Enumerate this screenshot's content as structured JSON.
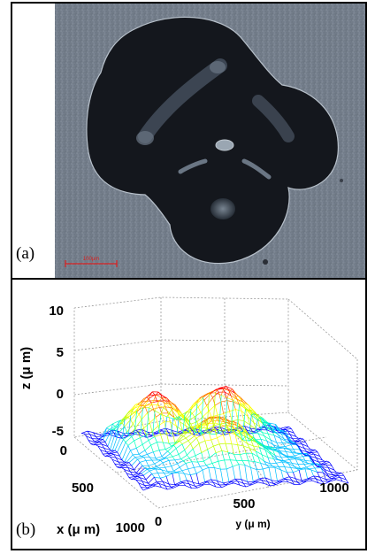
{
  "figure": {
    "panel_a": {
      "label": "(a)",
      "scale_bar_text": "100μm"
    },
    "panel_b": {
      "label": "(b)",
      "chart_data": {
        "type": "surface",
        "zlabel": "z (μ m)",
        "xlabel": "x (μ m)",
        "ylabel": "y (μ m)",
        "z_ticks": [
          "10",
          "5",
          "0",
          "-5"
        ],
        "x_ticks": [
          "0",
          "500",
          "1000"
        ],
        "y_ticks": [
          "0",
          "500",
          "1000"
        ],
        "zlim": [
          -5,
          10
        ],
        "xlim": [
          0,
          1000
        ],
        "ylim": [
          0,
          1000
        ],
        "grid": "on",
        "colormap": [
          "#0000ff",
          "#00bfff",
          "#00ffbf",
          "#bfff00",
          "#ffff00",
          "#ff8000",
          "#ff0000"
        ]
      }
    }
  }
}
